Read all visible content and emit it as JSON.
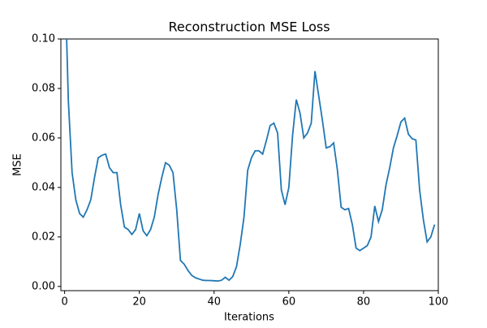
{
  "chart_data": {
    "type": "line",
    "title": "Reconstruction MSE Loss",
    "x_label": "Iterations",
    "y_label": "MSE",
    "x": [
      0,
      1,
      2,
      3,
      4,
      5,
      6,
      7,
      8,
      9,
      10,
      11,
      12,
      13,
      14,
      15,
      16,
      17,
      18,
      19,
      20,
      21,
      22,
      23,
      24,
      25,
      26,
      27,
      28,
      29,
      30,
      31,
      32,
      33,
      34,
      35,
      36,
      37,
      38,
      39,
      40,
      41,
      42,
      43,
      44,
      45,
      46,
      47,
      48,
      49,
      50,
      51,
      52,
      53,
      54,
      55,
      56,
      57,
      58,
      59,
      60,
      61,
      62,
      63,
      64,
      65,
      66,
      67,
      68,
      69,
      70,
      71,
      72,
      73,
      74,
      75,
      76,
      77,
      78,
      79,
      80,
      81,
      82,
      83,
      84,
      85,
      86,
      87,
      88,
      89,
      90,
      91,
      92,
      93,
      94,
      95,
      96,
      97,
      98,
      99
    ],
    "series": [
      {
        "name": "MSE",
        "color": "#1f77b4",
        "values": [
          0.13,
          0.075,
          0.046,
          0.035,
          0.0295,
          0.028,
          0.031,
          0.035,
          0.044,
          0.052,
          0.053,
          0.0535,
          0.048,
          0.046,
          0.046,
          0.033,
          0.024,
          0.023,
          0.021,
          0.023,
          0.0295,
          0.0225,
          0.0205,
          0.023,
          0.028,
          0.037,
          0.044,
          0.05,
          0.049,
          0.046,
          0.031,
          0.0105,
          0.009,
          0.0065,
          0.0045,
          0.0035,
          0.003,
          0.0025,
          0.0024,
          0.0024,
          0.0023,
          0.0022,
          0.0025,
          0.0037,
          0.0025,
          0.004,
          0.008,
          0.017,
          0.028,
          0.047,
          0.052,
          0.0548,
          0.0548,
          0.0535,
          0.059,
          0.065,
          0.066,
          0.062,
          0.039,
          0.033,
          0.04,
          0.061,
          0.0755,
          0.07,
          0.06,
          0.062,
          0.066,
          0.087,
          0.077,
          0.067,
          0.056,
          0.0565,
          0.058,
          0.047,
          0.032,
          0.031,
          0.0315,
          0.025,
          0.0155,
          0.0145,
          0.0155,
          0.0165,
          0.02,
          0.0325,
          0.0262,
          0.031,
          0.041,
          0.048,
          0.056,
          0.061,
          0.0665,
          0.068,
          0.0615,
          0.0597,
          0.0592,
          0.039,
          0.027,
          0.018,
          0.02,
          0.025
        ]
      }
    ],
    "xlim": [
      -1,
      100
    ],
    "ylim": [
      -0.0017,
      0.1
    ],
    "xticks": [
      0,
      20,
      40,
      60,
      80,
      100
    ],
    "yticks": [
      {
        "value": 0,
        "label": "0.00"
      },
      {
        "value": 0.02,
        "label": "0.02"
      },
      {
        "value": 0.04,
        "label": "0.04"
      },
      {
        "value": 0.06,
        "label": "0.06"
      },
      {
        "value": 0.08,
        "label": "0.08"
      },
      {
        "value": 0.1,
        "label": "0.10"
      }
    ]
  }
}
